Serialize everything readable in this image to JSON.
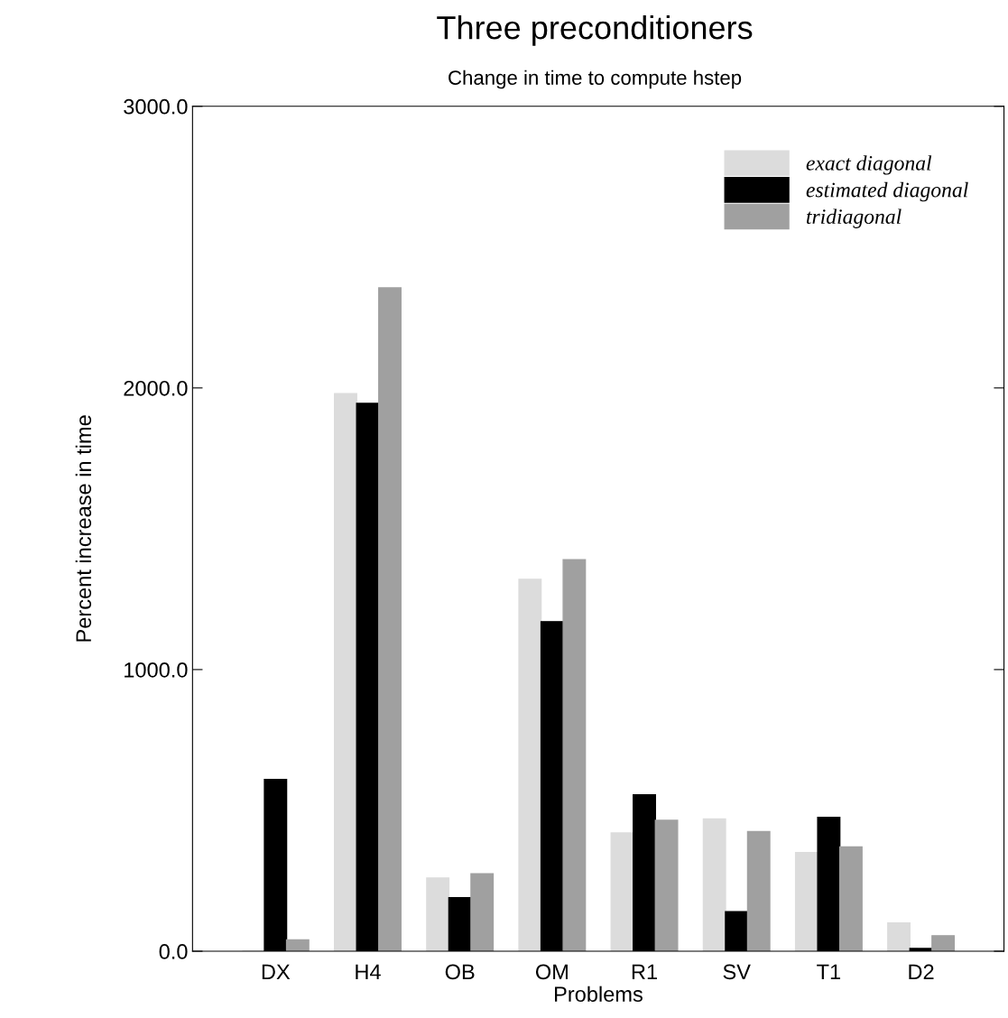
{
  "chart_data": {
    "type": "bar",
    "title": "Three preconditioners",
    "subtitle": "Change in time to compute hstep",
    "xlabel": "Problems",
    "ylabel": "Percent increase in time",
    "categories": [
      "DX",
      "H4",
      "OB",
      "OM",
      "R1",
      "SV",
      "T1",
      "D2"
    ],
    "series": [
      {
        "name": "exact diagonal",
        "color": "#dcdcdc",
        "values": [
          0,
          1980,
          260,
          1320,
          420,
          470,
          350,
          100
        ]
      },
      {
        "name": "estimated diagonal",
        "color": "#000000",
        "values": [
          610,
          1945,
          190,
          1170,
          555,
          140,
          475,
          10
        ]
      },
      {
        "name": "tridiagonal",
        "color": "#a0a0a0",
        "values": [
          40,
          2355,
          275,
          1390,
          465,
          425,
          370,
          55
        ]
      }
    ],
    "ylim": [
      0,
      3000
    ],
    "yticks": [
      {
        "value": 0,
        "label": "0.0"
      },
      {
        "value": 1000,
        "label": "1000.0"
      },
      {
        "value": 2000,
        "label": "2000.0"
      },
      {
        "value": 3000,
        "label": "3000.0"
      }
    ],
    "grid": false,
    "legend": "top right"
  }
}
